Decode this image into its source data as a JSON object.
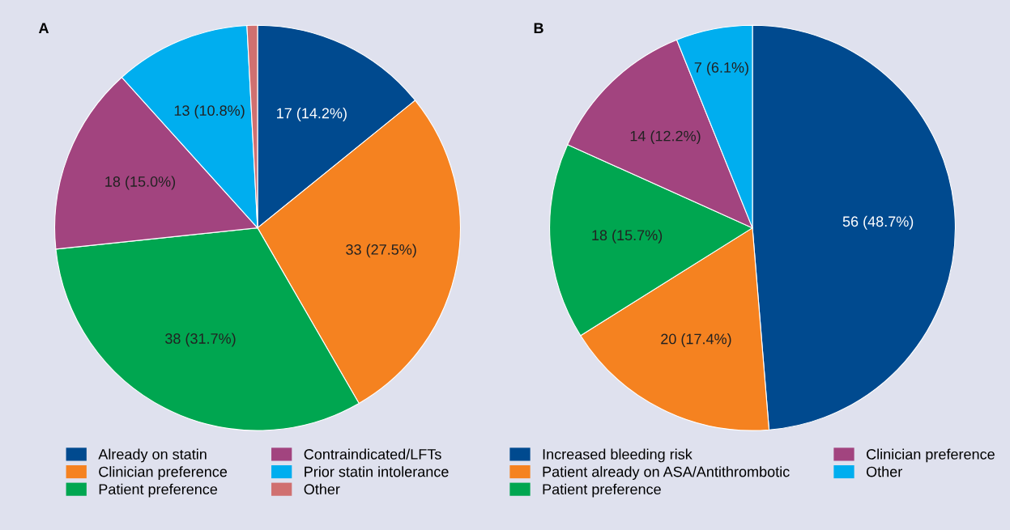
{
  "chart_data": [
    {
      "type": "pie",
      "title": "A",
      "categories": [
        "Already on statin",
        "Clinician preference",
        "Patient preference",
        "Contraindicated/LFTs",
        "Prior statin intolerance",
        "Other"
      ],
      "values": [
        17,
        33,
        38,
        18,
        13,
        1
      ],
      "colors": [
        "#004a8f",
        "#f58220",
        "#00a650",
        "#a2447f",
        "#00aeef",
        "#d07070"
      ],
      "value_labels": [
        "17 (14.2%)",
        "33 (27.5%)",
        "38 (31.7%)",
        "18 (15.0%)",
        "13 (10.8%)",
        null
      ],
      "legend": "bottom"
    },
    {
      "type": "pie",
      "title": "B",
      "categories": [
        "Increased bleeding risk",
        "Patient already on ASA/Antithrombotic",
        "Patient preference",
        "Clinician preference",
        "Other"
      ],
      "values": [
        56,
        20,
        18,
        14,
        7
      ],
      "colors": [
        "#004a8f",
        "#f58220",
        "#00a650",
        "#a2447f",
        "#00aeef"
      ],
      "value_labels": [
        "56 (48.7%)",
        "20 (17.4%)",
        "18 (15.7%)",
        "14 (12.2%)",
        "7 (6.1%)"
      ],
      "legend": "bottom"
    }
  ]
}
